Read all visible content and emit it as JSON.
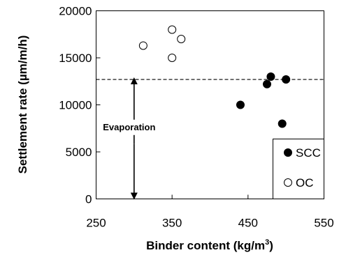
{
  "chart_data": {
    "type": "scatter",
    "xlabel": "Binder content (kg/m",
    "xlabel_sup": "3",
    "xlabel_end": ")",
    "ylabel": "Settlement rate (µm/m/h)",
    "xlim": [
      250,
      550
    ],
    "ylim": [
      0,
      20000
    ],
    "x_ticks": [
      "250",
      "350",
      "450",
      "550"
    ],
    "y_ticks": [
      "0",
      "5000",
      "10000",
      "15000",
      "20000"
    ],
    "grid": false,
    "legend_position": "bottom-right",
    "series": [
      {
        "name": "SCC",
        "marker": "filled-circle",
        "color": "#000000",
        "points": [
          {
            "x": 440,
            "y": 10000
          },
          {
            "x": 475,
            "y": 12200
          },
          {
            "x": 480,
            "y": 13000
          },
          {
            "x": 495,
            "y": 8000
          },
          {
            "x": 500,
            "y": 12700
          }
        ]
      },
      {
        "name": "OC",
        "marker": "open-circle",
        "color": "#000000",
        "points": [
          {
            "x": 312,
            "y": 16300
          },
          {
            "x": 350,
            "y": 18000
          },
          {
            "x": 350,
            "y": 15000
          },
          {
            "x": 362,
            "y": 17000
          }
        ]
      }
    ],
    "reference_line": {
      "y": 12700,
      "style": "dashed"
    },
    "annotations": [
      {
        "text": "Evaporation",
        "arrow_x": 300,
        "arrow_from_y": 0,
        "arrow_to_y": 12700
      }
    ]
  }
}
